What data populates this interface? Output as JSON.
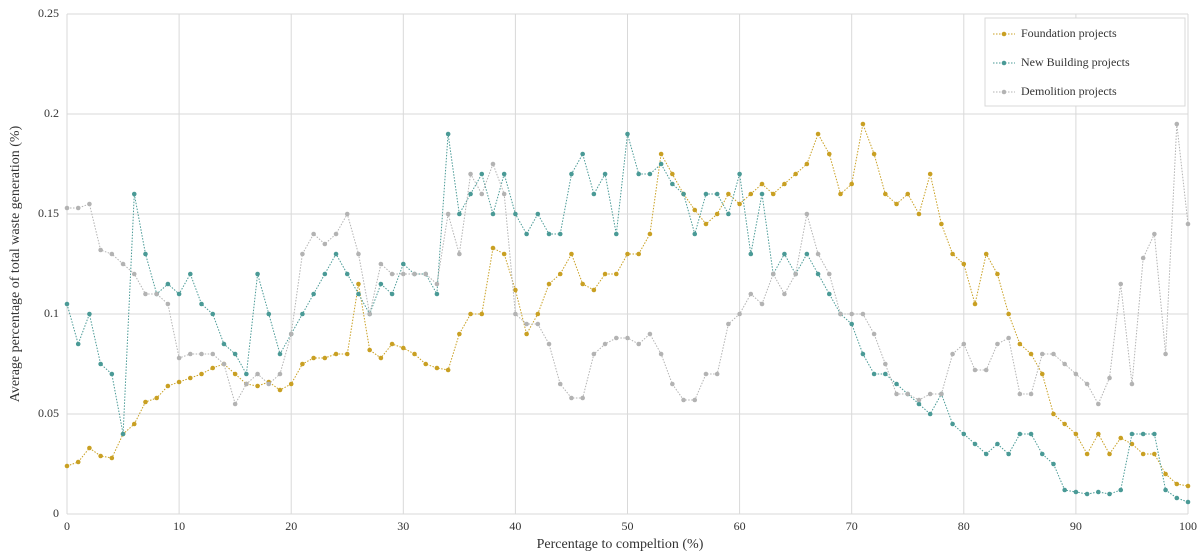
{
  "chart_data": {
    "type": "line",
    "xlabel": "Percentage to compeltion (%)",
    "ylabel": "Average percentage of total waste generation (%)",
    "x": [
      0,
      1,
      2,
      3,
      4,
      5,
      6,
      7,
      8,
      9,
      10,
      11,
      12,
      13,
      14,
      15,
      16,
      17,
      18,
      19,
      20,
      21,
      22,
      23,
      24,
      25,
      26,
      27,
      28,
      29,
      30,
      31,
      32,
      33,
      34,
      35,
      36,
      37,
      38,
      39,
      40,
      41,
      42,
      43,
      44,
      45,
      46,
      47,
      48,
      49,
      50,
      51,
      52,
      53,
      54,
      55,
      56,
      57,
      58,
      59,
      60,
      61,
      62,
      63,
      64,
      65,
      66,
      67,
      68,
      69,
      70,
      71,
      72,
      73,
      74,
      75,
      76,
      77,
      78,
      79,
      80,
      81,
      82,
      83,
      84,
      85,
      86,
      87,
      88,
      89,
      90,
      91,
      92,
      93,
      94,
      95,
      96,
      97,
      98,
      99,
      100
    ],
    "series": [
      {
        "name": "Foundation projects",
        "color": "#c9a023",
        "values": [
          0.024,
          0.026,
          0.033,
          0.029,
          0.028,
          0.04,
          0.045,
          0.056,
          0.058,
          0.064,
          0.066,
          0.068,
          0.07,
          0.073,
          0.075,
          0.07,
          0.065,
          0.064,
          0.066,
          0.062,
          0.065,
          0.075,
          0.078,
          0.078,
          0.08,
          0.08,
          0.115,
          0.082,
          0.078,
          0.085,
          0.083,
          0.08,
          0.075,
          0.073,
          0.072,
          0.09,
          0.1,
          0.1,
          0.133,
          0.13,
          0.112,
          0.09,
          0.1,
          0.115,
          0.12,
          0.13,
          0.115,
          0.112,
          0.12,
          0.12,
          0.13,
          0.13,
          0.14,
          0.18,
          0.17,
          0.16,
          0.152,
          0.145,
          0.15,
          0.16,
          0.155,
          0.16,
          0.165,
          0.16,
          0.165,
          0.17,
          0.175,
          0.19,
          0.18,
          0.16,
          0.165,
          0.195,
          0.18,
          0.16,
          0.155,
          0.16,
          0.15,
          0.17,
          0.145,
          0.13,
          0.125,
          0.105,
          0.13,
          0.12,
          0.1,
          0.085,
          0.08,
          0.07,
          0.05,
          0.045,
          0.04,
          0.03,
          0.04,
          0.03,
          0.038,
          0.035,
          0.03,
          0.03,
          0.02,
          0.015,
          0.014
        ]
      },
      {
        "name": "New Building projects",
        "color": "#4a9a96",
        "values": [
          0.105,
          0.085,
          0.1,
          0.075,
          0.07,
          0.04,
          0.16,
          0.13,
          0.11,
          0.115,
          0.11,
          0.12,
          0.105,
          0.1,
          0.085,
          0.08,
          0.07,
          0.12,
          0.1,
          0.08,
          0.09,
          0.1,
          0.11,
          0.12,
          0.13,
          0.12,
          0.11,
          0.1,
          0.115,
          0.11,
          0.125,
          0.12,
          0.12,
          0.11,
          0.19,
          0.15,
          0.16,
          0.17,
          0.15,
          0.17,
          0.15,
          0.14,
          0.15,
          0.14,
          0.14,
          0.17,
          0.18,
          0.16,
          0.17,
          0.14,
          0.19,
          0.17,
          0.17,
          0.175,
          0.165,
          0.16,
          0.14,
          0.16,
          0.16,
          0.15,
          0.17,
          0.13,
          0.16,
          0.12,
          0.13,
          0.12,
          0.13,
          0.12,
          0.11,
          0.1,
          0.095,
          0.08,
          0.07,
          0.07,
          0.065,
          0.06,
          0.055,
          0.05,
          0.06,
          0.045,
          0.04,
          0.035,
          0.03,
          0.035,
          0.03,
          0.04,
          0.04,
          0.03,
          0.025,
          0.012,
          0.011,
          0.01,
          0.011,
          0.01,
          0.012,
          0.04,
          0.04,
          0.04,
          0.012,
          0.008,
          0.006
        ]
      },
      {
        "name": "Demolition projects",
        "color": "#b3b3b3",
        "values": [
          0.153,
          0.153,
          0.155,
          0.132,
          0.13,
          0.125,
          0.12,
          0.11,
          0.11,
          0.105,
          0.078,
          0.08,
          0.08,
          0.08,
          0.075,
          0.055,
          0.065,
          0.07,
          0.065,
          0.07,
          0.09,
          0.13,
          0.14,
          0.135,
          0.14,
          0.15,
          0.13,
          0.1,
          0.125,
          0.12,
          0.12,
          0.12,
          0.12,
          0.115,
          0.15,
          0.13,
          0.17,
          0.16,
          0.175,
          0.16,
          0.1,
          0.095,
          0.095,
          0.085,
          0.065,
          0.058,
          0.058,
          0.08,
          0.085,
          0.088,
          0.088,
          0.085,
          0.09,
          0.08,
          0.065,
          0.057,
          0.057,
          0.07,
          0.07,
          0.095,
          0.1,
          0.11,
          0.105,
          0.12,
          0.11,
          0.12,
          0.15,
          0.13,
          0.12,
          0.1,
          0.1,
          0.1,
          0.09,
          0.075,
          0.06,
          0.06,
          0.057,
          0.06,
          0.06,
          0.08,
          0.085,
          0.072,
          0.072,
          0.085,
          0.088,
          0.06,
          0.06,
          0.08,
          0.08,
          0.075,
          0.07,
          0.065,
          0.055,
          0.068,
          0.115,
          0.065,
          0.128,
          0.14,
          0.08,
          0.195,
          0.145
        ]
      }
    ],
    "xlim": [
      0,
      100
    ],
    "xticks": [
      0,
      10,
      20,
      30,
      40,
      50,
      60,
      70,
      80,
      90,
      100
    ],
    "ylim": [
      0,
      0.25
    ],
    "yticks": [
      0,
      0.05,
      0.1,
      0.15,
      0.2,
      0.25
    ],
    "grid": true,
    "legend": "upper right"
  }
}
